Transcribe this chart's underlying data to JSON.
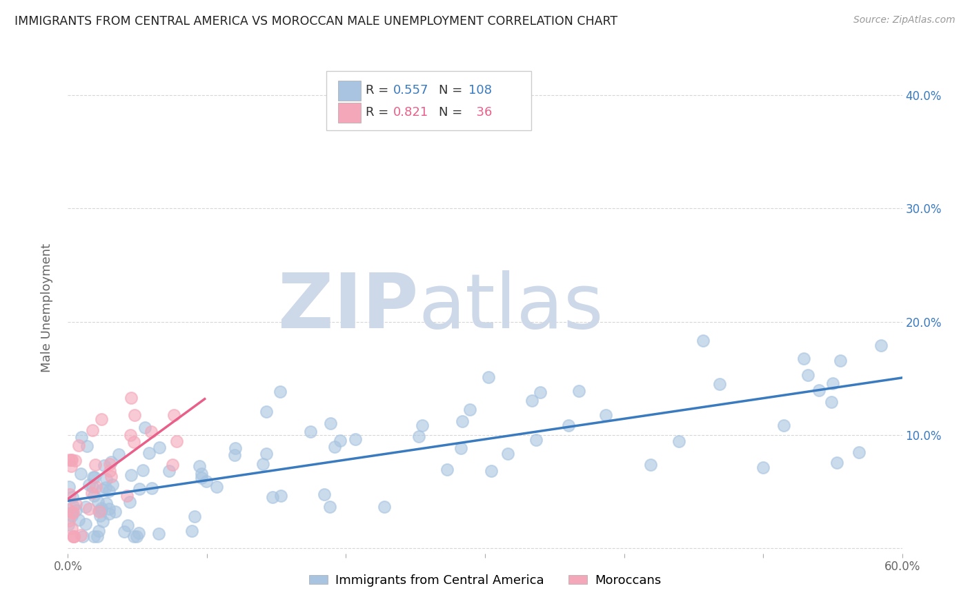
{
  "title": "IMMIGRANTS FROM CENTRAL AMERICA VS MOROCCAN MALE UNEMPLOYMENT CORRELATION CHART",
  "source": "Source: ZipAtlas.com",
  "ylabel": "Male Unemployment",
  "xlim": [
    0.0,
    0.6
  ],
  "ylim": [
    -0.005,
    0.43
  ],
  "blue_color": "#a8c4e0",
  "pink_color": "#f4a7b9",
  "blue_line_color": "#3a7abf",
  "pink_line_color": "#e8608a",
  "R_blue": 0.557,
  "N_blue": 108,
  "R_pink": 0.821,
  "N_pink": 36,
  "legend_blue_label": "Immigrants from Central America",
  "legend_pink_label": "Moroccans",
  "background_color": "#ffffff",
  "grid_color": "#cccccc",
  "watermark_zip_color": "#cdd8e8",
  "watermark_atlas_color": "#cdd8e8"
}
